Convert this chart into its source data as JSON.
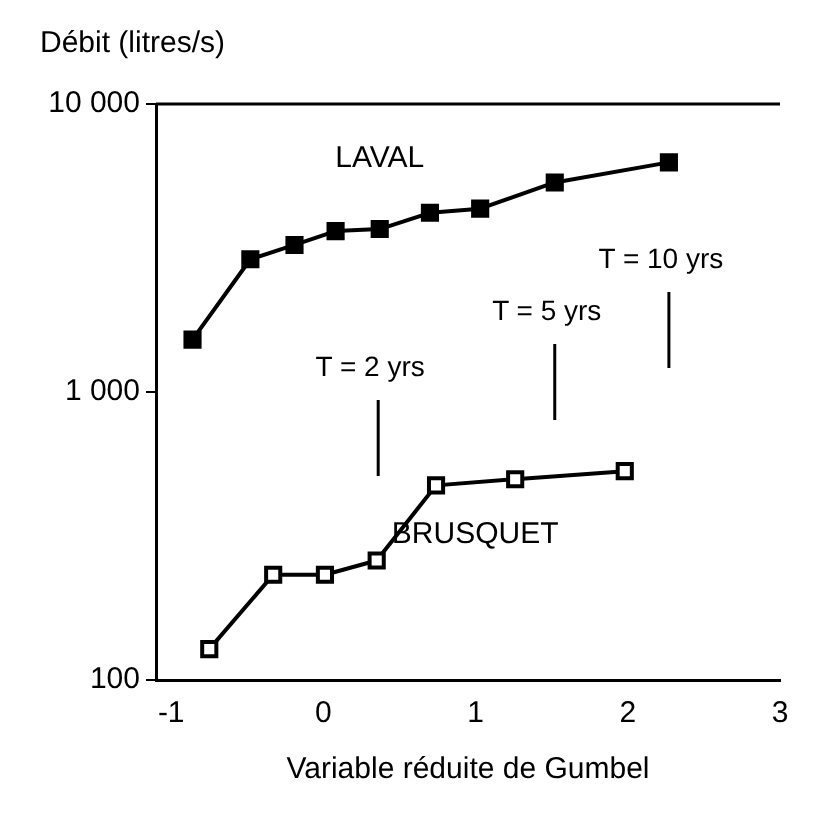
{
  "chart_data": {
    "type": "line",
    "ylabel": "Débit (litres/s)",
    "xlabel": "Variable réduite de Gumbel",
    "log": "y",
    "xlim": [
      -1.1,
      3
    ],
    "xticks": [
      -1,
      0,
      1,
      2,
      3
    ],
    "ylim": [
      100,
      10000
    ],
    "yticks": [
      100,
      {
        "value": 1000,
        "label": "1 000"
      },
      {
        "value": 10000,
        "label": "10 000"
      }
    ],
    "marker": "square",
    "line_style": "solid",
    "grid": false,
    "legend": false,
    "series": [
      {
        "name": "LAVAL",
        "color": "#000000",
        "x": [
          -0.86,
          -0.48,
          -0.19,
          0.08,
          0.37,
          0.7,
          1.03,
          1.52,
          2.27
        ],
        "values": [
          1520,
          2890,
          3240,
          3620,
          3680,
          4190,
          4330,
          5340,
          6270
        ]
      },
      {
        "name": "BRUSQUET",
        "color": "#000000",
        "x": [
          -0.75,
          -0.33,
          0.01,
          0.35,
          0.74,
          1.26,
          1.98
        ],
        "values": [
          128,
          232,
          232,
          260,
          474,
          498,
          531
        ]
      }
    ],
    "ref_lines": [
      {
        "axis": "x",
        "value": 0.36
      },
      {
        "axis": "x",
        "value": 1.52
      },
      {
        "axis": "x",
        "value": 2.27
      }
    ],
    "annotations": [
      "T = 2 yrs",
      "T = 5 yrs",
      "T = 10 yrs"
    ]
  }
}
